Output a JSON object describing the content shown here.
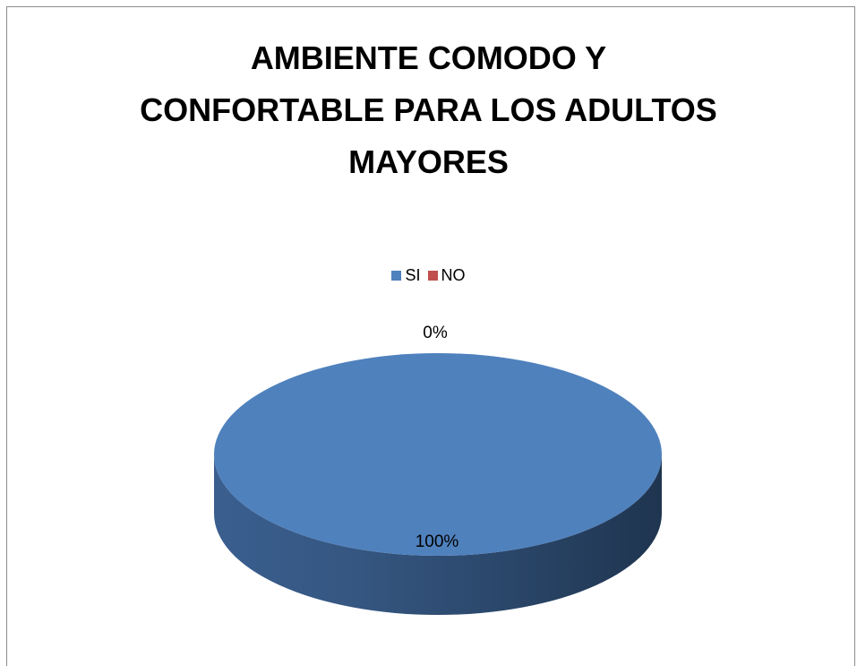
{
  "chart_data": {
    "type": "pie",
    "title": "AMBIENTE COMODO Y CONFORTABLE PARA LOS ADULTOS MAYORES",
    "title_lines": [
      "AMBIENTE COMODO Y",
      "CONFORTABLE PARA LOS ADULTOS",
      "MAYORES"
    ],
    "categories": [
      "SI",
      "NO"
    ],
    "values": [
      100,
      0
    ],
    "data_labels": [
      "100%",
      "0%"
    ],
    "colors": [
      "#4f81bd",
      "#c0504d"
    ],
    "legend": "top",
    "style": "3d-pie"
  }
}
